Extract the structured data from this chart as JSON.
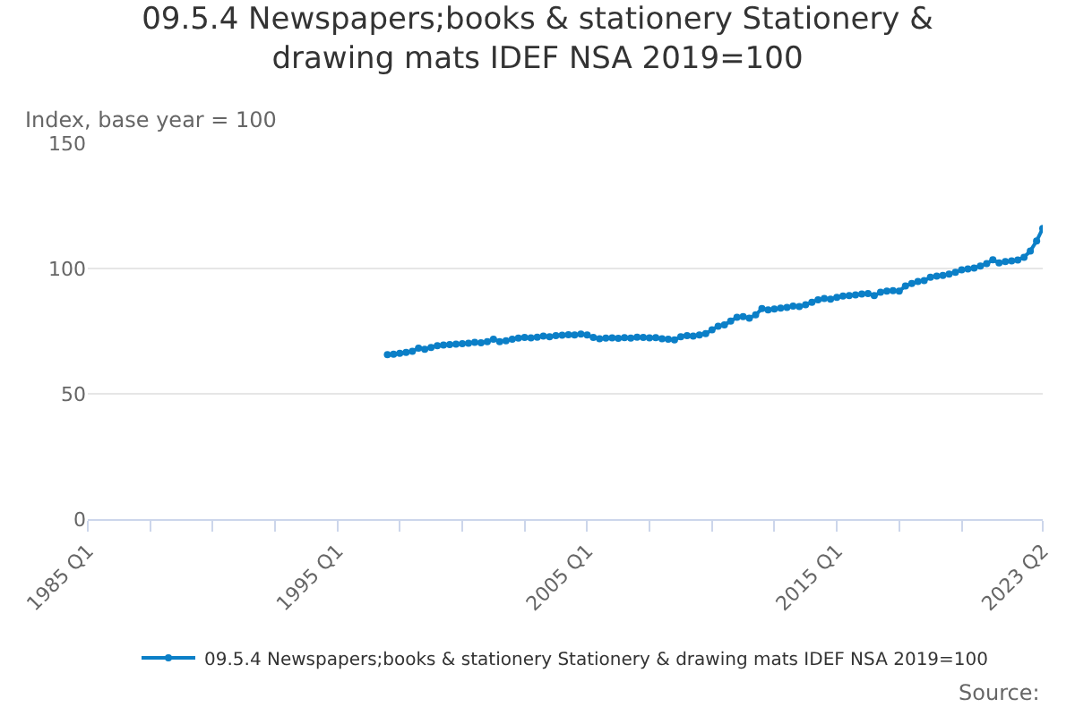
{
  "chart_data": {
    "type": "line",
    "title": "09.5.4 Newspapers;books & stationery Stationery & drawing mats IDEF NSA 2019=100",
    "ylabel": "Index, base year = 100",
    "x": [
      "1997-01",
      "1997-04",
      "1997-07",
      "1997-10",
      "1998-01",
      "1998-04",
      "1998-07",
      "1998-10",
      "1999-01",
      "1999-04",
      "1999-07",
      "1999-10",
      "2000-01",
      "2000-04",
      "2000-07",
      "2000-10",
      "2001-01",
      "2001-04",
      "2001-07",
      "2001-10",
      "2002-01",
      "2002-04",
      "2002-07",
      "2002-10",
      "2003-01",
      "2003-04",
      "2003-07",
      "2003-10",
      "2004-01",
      "2004-04",
      "2004-07",
      "2004-10",
      "2005-01",
      "2005-04",
      "2005-07",
      "2005-10",
      "2006-01",
      "2006-04",
      "2006-07",
      "2006-10",
      "2007-01",
      "2007-04",
      "2007-07",
      "2007-10",
      "2008-01",
      "2008-04",
      "2008-07",
      "2008-10",
      "2009-01",
      "2009-04",
      "2009-07",
      "2009-10",
      "2010-01",
      "2010-04",
      "2010-07",
      "2010-10",
      "2011-01",
      "2011-04",
      "2011-07",
      "2011-10",
      "2012-01",
      "2012-04",
      "2012-07",
      "2012-10",
      "2013-01",
      "2013-04",
      "2013-07",
      "2013-10",
      "2014-01",
      "2014-04",
      "2014-07",
      "2014-10",
      "2015-01",
      "2015-04",
      "2015-07",
      "2015-10",
      "2016-01",
      "2016-04",
      "2016-07",
      "2016-10",
      "2017-01",
      "2017-04",
      "2017-07",
      "2017-10",
      "2018-01",
      "2018-04",
      "2018-07",
      "2018-10",
      "2019-01",
      "2019-04",
      "2019-07",
      "2019-10",
      "2020-01",
      "2020-04",
      "2020-07",
      "2020-10",
      "2021-01",
      "2021-04",
      "2021-07",
      "2021-10",
      "2022-01",
      "2022-04",
      "2022-07",
      "2022-10",
      "2023-01",
      "2023-04"
    ],
    "series": [
      {
        "name": "09.5.4 Newspapers;books & stationery Stationery & drawing mats IDEF NSA 2019=100",
        "color": "#0b7fc7",
        "values": [
          65.6,
          65.8,
          66.2,
          66.5,
          67.0,
          68.2,
          67.8,
          68.5,
          69.2,
          69.5,
          69.6,
          69.8,
          70.0,
          70.2,
          70.5,
          70.4,
          70.8,
          71.8,
          70.8,
          71.2,
          71.8,
          72.2,
          72.5,
          72.3,
          72.6,
          73.0,
          72.8,
          73.2,
          73.4,
          73.6,
          73.5,
          73.8,
          73.5,
          72.5,
          72.0,
          72.2,
          72.3,
          72.1,
          72.4,
          72.2,
          72.6,
          72.5,
          72.3,
          72.4,
          72.0,
          71.8,
          71.5,
          72.8,
          73.2,
          73.0,
          73.5,
          74.0,
          75.5,
          77.0,
          77.5,
          79.0,
          80.5,
          80.8,
          80.2,
          81.5,
          84.0,
          83.5,
          83.8,
          84.2,
          84.5,
          85.0,
          84.8,
          85.5,
          86.5,
          87.5,
          88.0,
          87.8,
          88.5,
          89.0,
          89.2,
          89.5,
          89.8,
          90.0,
          89.2,
          90.5,
          91.0,
          91.2,
          91.0,
          93.0,
          94.0,
          94.8,
          95.2,
          96.5,
          97.0,
          97.2,
          97.8,
          98.5,
          99.5,
          99.8,
          100.2,
          101.0,
          102.0,
          103.5,
          102.2,
          102.8,
          103.0,
          103.4,
          104.5,
          107.0,
          111.0,
          116.0
        ]
      }
    ],
    "xlim": [
      "1985-01",
      "2023-04"
    ],
    "xticks": [
      {
        "value": "1985-01",
        "label": "1985 Q1"
      },
      {
        "value": "1987-07",
        "label": null
      },
      {
        "value": "1990-01",
        "label": null
      },
      {
        "value": "1992-07",
        "label": null
      },
      {
        "value": "1995-01",
        "label": "1995 Q1"
      },
      {
        "value": "1997-07",
        "label": null
      },
      {
        "value": "2000-01",
        "label": null
      },
      {
        "value": "2002-07",
        "label": null
      },
      {
        "value": "2005-01",
        "label": "2005 Q1"
      },
      {
        "value": "2007-07",
        "label": null
      },
      {
        "value": "2010-01",
        "label": null
      },
      {
        "value": "2012-07",
        "label": null
      },
      {
        "value": "2015-01",
        "label": "2015 Q1"
      },
      {
        "value": "2017-07",
        "label": null
      },
      {
        "value": "2020-01",
        "label": null
      },
      {
        "value": "2023-04",
        "label": "2023 Q2"
      }
    ],
    "ylim": [
      0,
      150
    ],
    "yticks": [
      0,
      50,
      100,
      150
    ],
    "grid": "y",
    "legend": "bottom",
    "marker": "circle",
    "line_style": "solid",
    "annotations": [
      "Source:"
    ]
  }
}
